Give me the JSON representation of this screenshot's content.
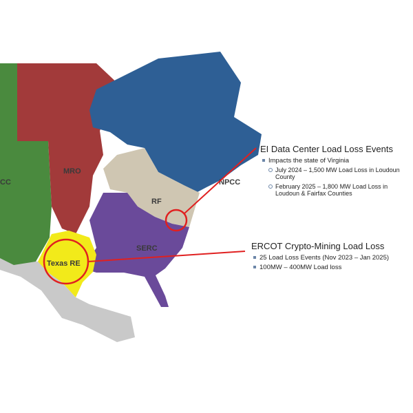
{
  "map": {
    "regions": [
      "CC",
      "MRO",
      "NPCC",
      "RF",
      "SERC",
      "Texas RE"
    ]
  },
  "callouts": [
    {
      "title": "EI Data Center Load Loss Events",
      "bullet": "Impacts the state of Virginia",
      "sub": [
        "July 2024 – 1,500 MW Load Loss in Loudoun County",
        "February 2025  –  1,800 MW Load Loss in Loudoun & Fairfax Counties"
      ]
    },
    {
      "title": "ERCOT Crypto-Mining Load Loss",
      "bullets": [
        "25 Load Loss Events (Nov 2023 – Jan 2025)",
        "100MW – 400MW Load loss"
      ]
    }
  ]
}
